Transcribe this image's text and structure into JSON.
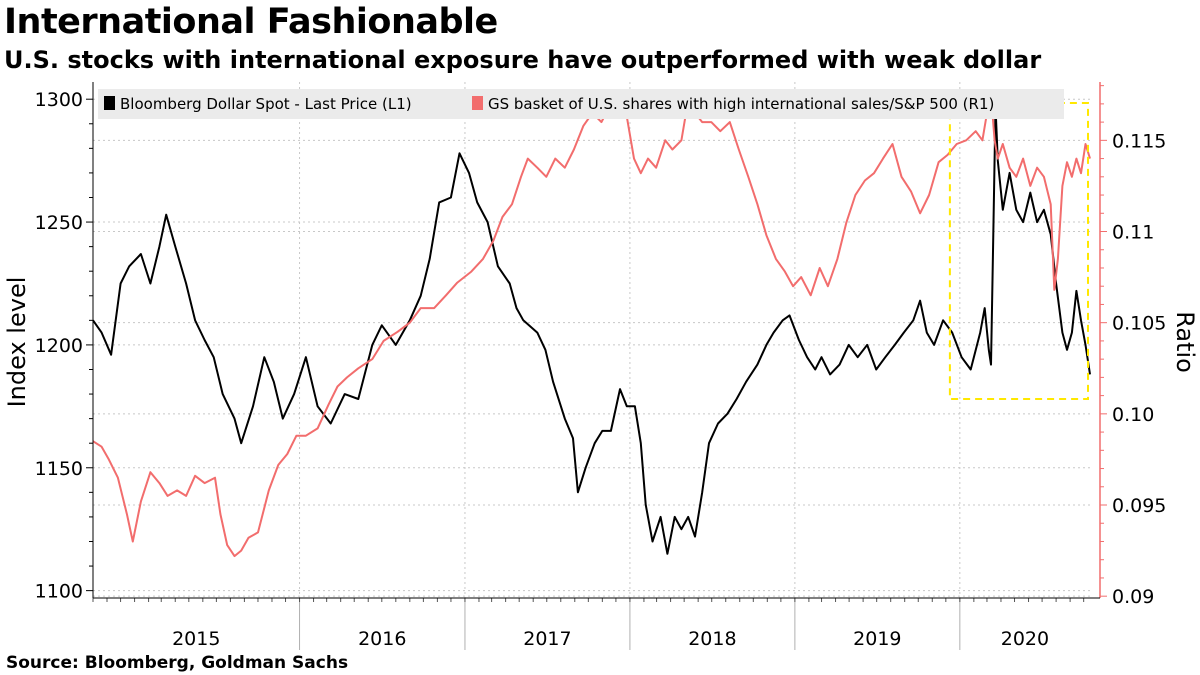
{
  "title": "International Fashionable",
  "subtitle": "U.S. stocks with international exposure have outperformed with weak dollar",
  "source": "Source: Bloomberg, Goldman Sachs",
  "chart_data": {
    "type": "line",
    "y_left_label": "Index level",
    "y_right_label": "Ratio",
    "y_left_range": [
      1097,
      1307
    ],
    "y_right_range": [
      0.0899,
      0.1182
    ],
    "y_left_ticks": [
      "1100",
      "1150",
      "1200",
      "1250",
      "1300"
    ],
    "y_right_ticks": [
      "0.09",
      "0.095",
      "0.10",
      "0.105",
      "0.11",
      "0.115"
    ],
    "x_range": [
      "2014-10-01",
      "2020-10-15"
    ],
    "x_year_labels": [
      "2015",
      "2016",
      "2017",
      "2018",
      "2019",
      "2020"
    ],
    "grid": true,
    "legend_position": "top",
    "highlight_box": {
      "x_start": "2019-12-10",
      "x_end": "2020-10-30",
      "color": "#ffe800"
    },
    "series": [
      {
        "name": "Bloomberg Dollar Spot - Last Price (L1)",
        "axis": "left",
        "color": "#000000",
        "points": [
          [
            "2014-10-01",
            1210
          ],
          [
            "2014-10-20",
            1205
          ],
          [
            "2014-11-10",
            1196
          ],
          [
            "2014-12-01",
            1225
          ],
          [
            "2014-12-20",
            1232
          ],
          [
            "2015-01-15",
            1237
          ],
          [
            "2015-02-05",
            1225
          ],
          [
            "2015-02-25",
            1240
          ],
          [
            "2015-03-12",
            1253
          ],
          [
            "2015-04-01",
            1240
          ],
          [
            "2015-04-25",
            1225
          ],
          [
            "2015-05-15",
            1210
          ],
          [
            "2015-06-05",
            1202
          ],
          [
            "2015-06-25",
            1195
          ],
          [
            "2015-07-15",
            1180
          ],
          [
            "2015-08-10",
            1170
          ],
          [
            "2015-08-25",
            1160
          ],
          [
            "2015-09-20",
            1175
          ],
          [
            "2015-10-15",
            1195
          ],
          [
            "2015-11-05",
            1185
          ],
          [
            "2015-11-25",
            1170
          ],
          [
            "2015-12-20",
            1180
          ],
          [
            "2016-01-15",
            1195
          ],
          [
            "2016-02-10",
            1175
          ],
          [
            "2016-03-10",
            1168
          ],
          [
            "2016-04-10",
            1180
          ],
          [
            "2016-05-10",
            1178
          ],
          [
            "2016-06-10",
            1200
          ],
          [
            "2016-07-01",
            1208
          ],
          [
            "2016-08-01",
            1200
          ],
          [
            "2016-09-01",
            1210
          ],
          [
            "2016-09-25",
            1220
          ],
          [
            "2016-10-15",
            1235
          ],
          [
            "2016-11-05",
            1258
          ],
          [
            "2016-12-01",
            1260
          ],
          [
            "2016-12-20",
            1278
          ],
          [
            "2017-01-10",
            1270
          ],
          [
            "2017-01-28",
            1258
          ],
          [
            "2017-02-20",
            1250
          ],
          [
            "2017-03-15",
            1232
          ],
          [
            "2017-04-10",
            1225
          ],
          [
            "2017-04-25",
            1215
          ],
          [
            "2017-05-10",
            1210
          ],
          [
            "2017-06-10",
            1205
          ],
          [
            "2017-06-28",
            1198
          ],
          [
            "2017-07-15",
            1185
          ],
          [
            "2017-08-10",
            1170
          ],
          [
            "2017-08-28",
            1162
          ],
          [
            "2017-09-08",
            1140
          ],
          [
            "2017-09-25",
            1150
          ],
          [
            "2017-10-15",
            1160
          ],
          [
            "2017-11-01",
            1165
          ],
          [
            "2017-11-20",
            1165
          ],
          [
            "2017-12-10",
            1182
          ],
          [
            "2017-12-25",
            1175
          ],
          [
            "2018-01-12",
            1175
          ],
          [
            "2018-01-25",
            1160
          ],
          [
            "2018-02-05",
            1135
          ],
          [
            "2018-02-20",
            1120
          ],
          [
            "2018-03-10",
            1130
          ],
          [
            "2018-03-25",
            1115
          ],
          [
            "2018-04-10",
            1130
          ],
          [
            "2018-04-25",
            1125
          ],
          [
            "2018-05-10",
            1130
          ],
          [
            "2018-05-25",
            1122
          ],
          [
            "2018-06-10",
            1140
          ],
          [
            "2018-06-25",
            1160
          ],
          [
            "2018-07-15",
            1168
          ],
          [
            "2018-08-05",
            1172
          ],
          [
            "2018-08-25",
            1178
          ],
          [
            "2018-09-15",
            1185
          ],
          [
            "2018-10-10",
            1192
          ],
          [
            "2018-10-30",
            1200
          ],
          [
            "2018-11-15",
            1205
          ],
          [
            "2018-12-05",
            1210
          ],
          [
            "2018-12-20",
            1212
          ],
          [
            "2019-01-10",
            1202
          ],
          [
            "2019-01-28",
            1195
          ],
          [
            "2019-02-15",
            1190
          ],
          [
            "2019-03-01",
            1195
          ],
          [
            "2019-03-20",
            1188
          ],
          [
            "2019-04-10",
            1192
          ],
          [
            "2019-04-30",
            1200
          ],
          [
            "2019-05-20",
            1195
          ],
          [
            "2019-06-10",
            1200
          ],
          [
            "2019-06-30",
            1190
          ],
          [
            "2019-07-20",
            1195
          ],
          [
            "2019-08-10",
            1200
          ],
          [
            "2019-08-30",
            1205
          ],
          [
            "2019-09-20",
            1210
          ],
          [
            "2019-10-05",
            1218
          ],
          [
            "2019-10-20",
            1205
          ],
          [
            "2019-11-05",
            1200
          ],
          [
            "2019-11-25",
            1210
          ],
          [
            "2019-12-15",
            1205
          ],
          [
            "2020-01-05",
            1195
          ],
          [
            "2020-01-25",
            1190
          ],
          [
            "2020-02-15",
            1205
          ],
          [
            "2020-02-25",
            1215
          ],
          [
            "2020-03-05",
            1198
          ],
          [
            "2020-03-10",
            1192
          ],
          [
            "2020-03-15",
            1245
          ],
          [
            "2020-03-20",
            1297
          ],
          [
            "2020-03-25",
            1275
          ],
          [
            "2020-04-05",
            1255
          ],
          [
            "2020-04-20",
            1270
          ],
          [
            "2020-05-05",
            1255
          ],
          [
            "2020-05-20",
            1250
          ],
          [
            "2020-06-05",
            1262
          ],
          [
            "2020-06-20",
            1250
          ],
          [
            "2020-07-05",
            1255
          ],
          [
            "2020-07-20",
            1245
          ],
          [
            "2020-08-01",
            1225
          ],
          [
            "2020-08-15",
            1205
          ],
          [
            "2020-08-25",
            1198
          ],
          [
            "2020-09-05",
            1205
          ],
          [
            "2020-09-15",
            1222
          ],
          [
            "2020-09-25",
            1210
          ],
          [
            "2020-10-05",
            1200
          ],
          [
            "2020-10-15",
            1188
          ]
        ]
      },
      {
        "name": "GS basket of U.S. shares with high international sales/S&P 500 (R1)",
        "axis": "right",
        "color": "#f26d6d",
        "points": [
          [
            "2014-10-01",
            0.0985
          ],
          [
            "2014-10-20",
            0.0982
          ],
          [
            "2014-11-05",
            0.0975
          ],
          [
            "2014-11-25",
            0.0965
          ],
          [
            "2014-12-15",
            0.0945
          ],
          [
            "2014-12-28",
            0.093
          ],
          [
            "2015-01-15",
            0.0952
          ],
          [
            "2015-02-05",
            0.0968
          ],
          [
            "2015-02-25",
            0.0962
          ],
          [
            "2015-03-15",
            0.0955
          ],
          [
            "2015-04-05",
            0.0958
          ],
          [
            "2015-04-25",
            0.0955
          ],
          [
            "2015-05-15",
            0.0966
          ],
          [
            "2015-06-05",
            0.0962
          ],
          [
            "2015-06-28",
            0.0965
          ],
          [
            "2015-07-10",
            0.0945
          ],
          [
            "2015-07-25",
            0.0928
          ],
          [
            "2015-08-10",
            0.0922
          ],
          [
            "2015-08-25",
            0.0925
          ],
          [
            "2015-09-10",
            0.0932
          ],
          [
            "2015-10-01",
            0.0935
          ],
          [
            "2015-10-25",
            0.0958
          ],
          [
            "2015-11-15",
            0.0972
          ],
          [
            "2015-12-05",
            0.0978
          ],
          [
            "2015-12-25",
            0.0988
          ],
          [
            "2016-01-15",
            0.0988
          ],
          [
            "2016-02-10",
            0.0992
          ],
          [
            "2016-03-05",
            0.1005
          ],
          [
            "2016-03-25",
            0.1015
          ],
          [
            "2016-04-15",
            0.102
          ],
          [
            "2016-05-10",
            0.1025
          ],
          [
            "2016-06-10",
            0.103
          ],
          [
            "2016-07-05",
            0.104
          ],
          [
            "2016-08-05",
            0.1045
          ],
          [
            "2016-09-01",
            0.105
          ],
          [
            "2016-09-25",
            0.1058
          ],
          [
            "2016-10-25",
            0.1058
          ],
          [
            "2016-11-20",
            0.1065
          ],
          [
            "2016-12-15",
            0.1072
          ],
          [
            "2017-01-15",
            0.1078
          ],
          [
            "2017-02-10",
            0.1085
          ],
          [
            "2017-03-05",
            0.1095
          ],
          [
            "2017-03-25",
            0.1108
          ],
          [
            "2017-04-15",
            0.1115
          ],
          [
            "2017-05-05",
            0.113
          ],
          [
            "2017-05-20",
            0.114
          ],
          [
            "2017-06-10",
            0.1135
          ],
          [
            "2017-06-30",
            0.113
          ],
          [
            "2017-07-20",
            0.114
          ],
          [
            "2017-08-10",
            0.1135
          ],
          [
            "2017-08-30",
            0.1145
          ],
          [
            "2017-09-20",
            0.1158
          ],
          [
            "2017-10-10",
            0.1165
          ],
          [
            "2017-10-30",
            0.116
          ],
          [
            "2017-11-20",
            0.117
          ],
          [
            "2017-12-10",
            0.1168
          ],
          [
            "2017-12-25",
            0.1163
          ],
          [
            "2018-01-10",
            0.114
          ],
          [
            "2018-01-25",
            0.1132
          ],
          [
            "2018-02-10",
            0.114
          ],
          [
            "2018-02-28",
            0.1135
          ],
          [
            "2018-03-20",
            0.115
          ],
          [
            "2018-04-05",
            0.1145
          ],
          [
            "2018-04-25",
            0.115
          ],
          [
            "2018-05-10",
            0.1172
          ],
          [
            "2018-05-25",
            0.1165
          ],
          [
            "2018-06-10",
            0.116
          ],
          [
            "2018-06-30",
            0.116
          ],
          [
            "2018-07-20",
            0.1155
          ],
          [
            "2018-08-10",
            0.116
          ],
          [
            "2018-08-30",
            0.1145
          ],
          [
            "2018-09-20",
            0.113
          ],
          [
            "2018-10-10",
            0.1115
          ],
          [
            "2018-10-30",
            0.1098
          ],
          [
            "2018-11-20",
            0.1085
          ],
          [
            "2018-12-10",
            0.1078
          ],
          [
            "2018-12-28",
            0.107
          ],
          [
            "2019-01-15",
            0.1075
          ],
          [
            "2019-02-05",
            0.1065
          ],
          [
            "2019-02-25",
            0.108
          ],
          [
            "2019-03-15",
            0.107
          ],
          [
            "2019-04-05",
            0.1085
          ],
          [
            "2019-04-25",
            0.1105
          ],
          [
            "2019-05-15",
            0.112
          ],
          [
            "2019-06-05",
            0.1128
          ],
          [
            "2019-06-25",
            0.1132
          ],
          [
            "2019-07-15",
            0.114
          ],
          [
            "2019-08-05",
            0.1148
          ],
          [
            "2019-08-25",
            0.113
          ],
          [
            "2019-09-15",
            0.1122
          ],
          [
            "2019-10-05",
            0.111
          ],
          [
            "2019-10-25",
            0.112
          ],
          [
            "2019-11-15",
            0.1138
          ],
          [
            "2019-12-05",
            0.1142
          ],
          [
            "2019-12-25",
            0.1148
          ],
          [
            "2020-01-15",
            0.115
          ],
          [
            "2020-02-05",
            0.1155
          ],
          [
            "2020-02-20",
            0.115
          ],
          [
            "2020-03-01",
            0.1165
          ],
          [
            "2020-03-10",
            0.1175
          ],
          [
            "2020-03-18",
            0.115
          ],
          [
            "2020-03-25",
            0.114
          ],
          [
            "2020-04-05",
            0.1148
          ],
          [
            "2020-04-20",
            0.1135
          ],
          [
            "2020-05-05",
            0.113
          ],
          [
            "2020-05-20",
            0.114
          ],
          [
            "2020-06-05",
            0.1125
          ],
          [
            "2020-06-20",
            0.1135
          ],
          [
            "2020-07-05",
            0.113
          ],
          [
            "2020-07-20",
            0.1115
          ],
          [
            "2020-07-28",
            0.1068
          ],
          [
            "2020-08-05",
            0.1085
          ],
          [
            "2020-08-15",
            0.1125
          ],
          [
            "2020-08-25",
            0.1138
          ],
          [
            "2020-09-05",
            0.113
          ],
          [
            "2020-09-15",
            0.114
          ],
          [
            "2020-09-25",
            0.1132
          ],
          [
            "2020-10-05",
            0.1148
          ],
          [
            "2020-10-15",
            0.114
          ]
        ]
      }
    ]
  }
}
